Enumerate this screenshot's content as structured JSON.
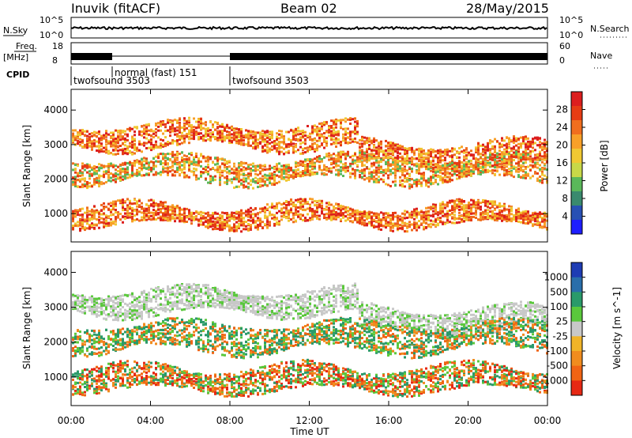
{
  "header": {
    "station": "Inuvik (fitACF)",
    "beam": "Beam 02",
    "date": "28/May/2015"
  },
  "strips": {
    "nsky_label": "N.Sky",
    "nsky_ticks": [
      "10^5",
      "10^0"
    ],
    "nsearch_label": "N.Search",
    "nsearch_ticks": [
      "10^5",
      "10^0"
    ],
    "freq_label": "Freq.",
    "freq_unit": "[MHz]",
    "freq_ticks": [
      "18",
      "8"
    ],
    "nave_label": "Nave",
    "nave_ticks": [
      "60",
      "0"
    ],
    "cpid_label": "CPID",
    "cpid_segments": [
      {
        "label": "twofsound 3503",
        "start_hour": 0,
        "end_hour": 2
      },
      {
        "label": "normal (fast) 151",
        "start_hour": 2,
        "end_hour": 8
      },
      {
        "label": "twofsound 3503",
        "start_hour": 8,
        "end_hour": 24
      }
    ]
  },
  "chart_data": [
    {
      "type": "heatmap",
      "panel": "power",
      "ylabel": "Slant Range [km]",
      "ylim": [
        180,
        4600
      ],
      "yticks": [
        1000,
        2000,
        3000,
        4000
      ],
      "xlim": [
        0,
        24
      ],
      "colorbar": {
        "label": "Power [dB]",
        "ticks": [
          "4",
          "8",
          "12",
          "16",
          "20",
          "24",
          "28"
        ],
        "colors": [
          "#1e1eff",
          "#2850b4",
          "#3a8a6e",
          "#5ab85a",
          "#c8d848",
          "#f0c832",
          "#f8a028",
          "#f06e1e",
          "#e63c14",
          "#dc1e1e"
        ]
      }
    },
    {
      "type": "heatmap",
      "panel": "velocity",
      "ylabel": "Slant Range [km]",
      "ylim": [
        180,
        4600
      ],
      "yticks": [
        1000,
        2000,
        3000,
        4000
      ],
      "xlim": [
        0,
        24
      ],
      "colorbar": {
        "label": "Velocity [m s^-1]",
        "ticks": [
          "1000",
          "500",
          "100",
          "25",
          "-25",
          "-100",
          "-500",
          "-1000"
        ],
        "colors": [
          "#1e3cb4",
          "#2a6eaa",
          "#2a9a6a",
          "#5ac83c",
          "#c8c8c8",
          "#f0b428",
          "#f08c1e",
          "#f06414",
          "#e62814"
        ]
      }
    }
  ],
  "xaxis": {
    "label": "Time UT",
    "ticks": [
      "00:00",
      "04:00",
      "08:00",
      "12:00",
      "16:00",
      "20:00",
      "00:00"
    ],
    "tick_hours": [
      0,
      4,
      8,
      12,
      16,
      20,
      24
    ]
  }
}
